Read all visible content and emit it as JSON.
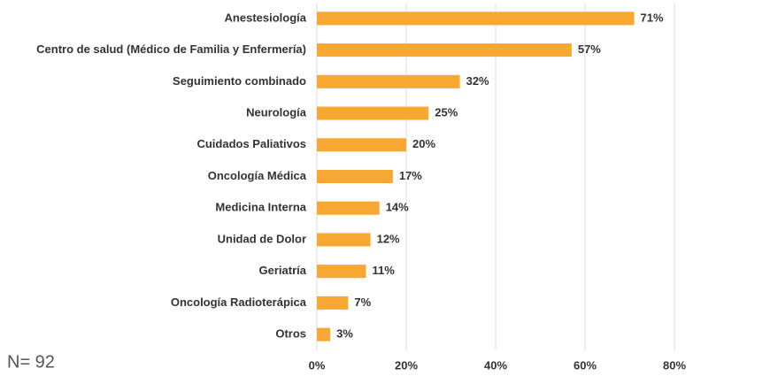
{
  "chart_data": {
    "type": "bar",
    "orientation": "horizontal",
    "categories": [
      "Anestesiología",
      "Centro de salud (Médico de Familia y Enfermería)",
      "Seguimiento combinado",
      "Neurología",
      "Cuidados Paliativos",
      "Oncología Médica",
      "Medicina Interna",
      "Unidad de Dolor",
      "Geriatría",
      "Oncología Radioterápica",
      "Otros"
    ],
    "values": [
      71,
      57,
      32,
      25,
      20,
      17,
      14,
      12,
      11,
      7,
      3
    ],
    "value_labels": [
      "71%",
      "57%",
      "32%",
      "25%",
      "20%",
      "17%",
      "14%",
      "12%",
      "11%",
      "7%",
      "3%"
    ],
    "color": "#f7a833",
    "xlim": [
      0,
      80
    ],
    "xticks": [
      {
        "value": 0,
        "label": "0%"
      },
      {
        "value": 20,
        "label": "20%"
      },
      {
        "value": 40,
        "label": "40%"
      },
      {
        "value": 60,
        "label": "60%"
      },
      {
        "value": 80,
        "label": "80%"
      }
    ],
    "grid": true,
    "annotation": "N= 92"
  }
}
